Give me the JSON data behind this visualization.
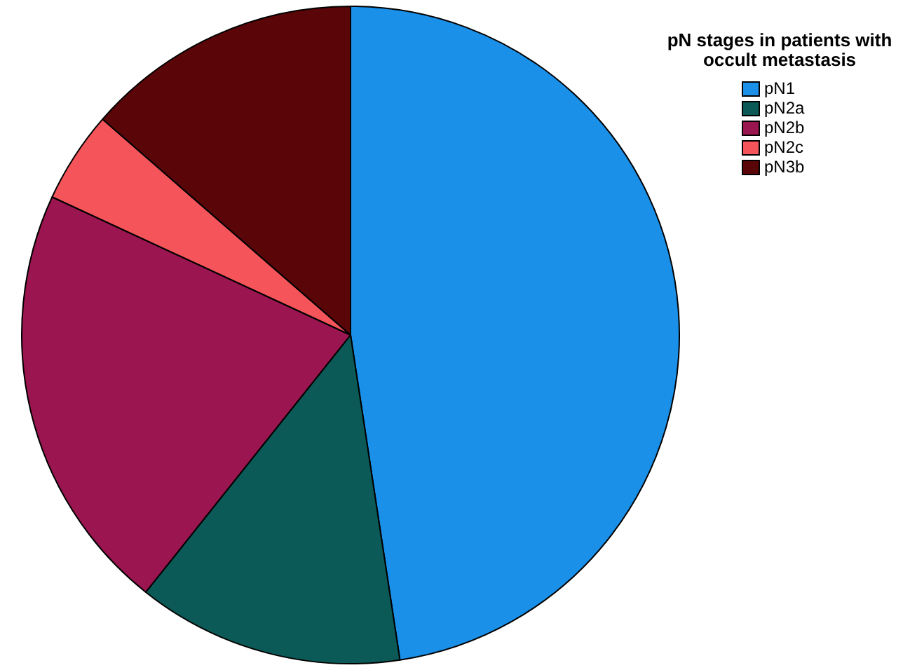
{
  "chart_data": {
    "type": "pie",
    "legend_title": "pN stages in patients with occult metastasis",
    "categories": [
      "pN1",
      "pN2a",
      "pN2b",
      "pN2c",
      "pN3b"
    ],
    "values": [
      47.6,
      13.1,
      21.2,
      4.5,
      13.6
    ],
    "colors": [
      "#1a90e8",
      "#0b5a57",
      "#9b1550",
      "#f5555a",
      "#5a0508"
    ],
    "legend": "top right"
  }
}
